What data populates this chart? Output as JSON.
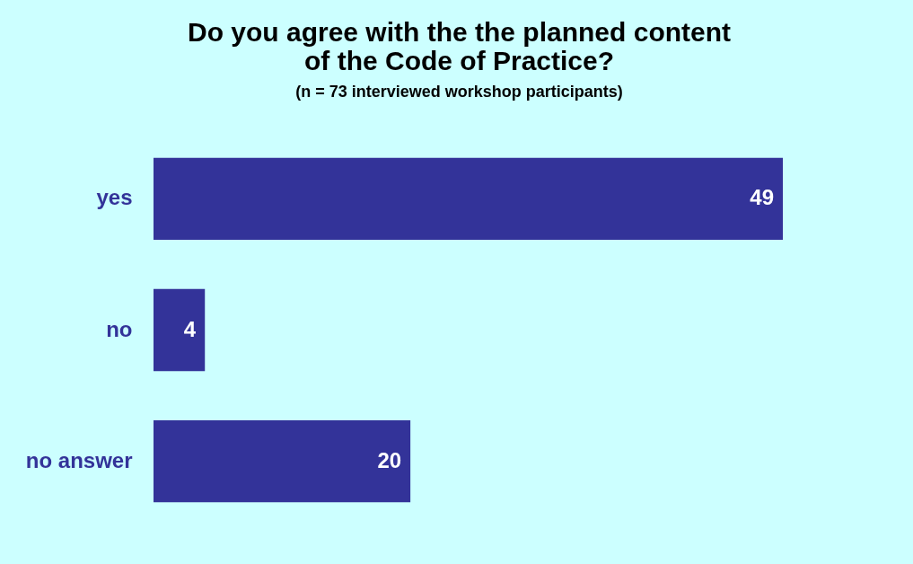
{
  "chart_data": {
    "type": "bar",
    "orientation": "horizontal",
    "title": [
      "Do you agree with the the planned content",
      "of the Code of Practice?"
    ],
    "subtitle": "(n = 73 interviewed workshop participants)",
    "categories": [
      "yes",
      "no",
      "no answer"
    ],
    "values": [
      49,
      4,
      20
    ],
    "color": "#333399",
    "data_labels": true
  }
}
